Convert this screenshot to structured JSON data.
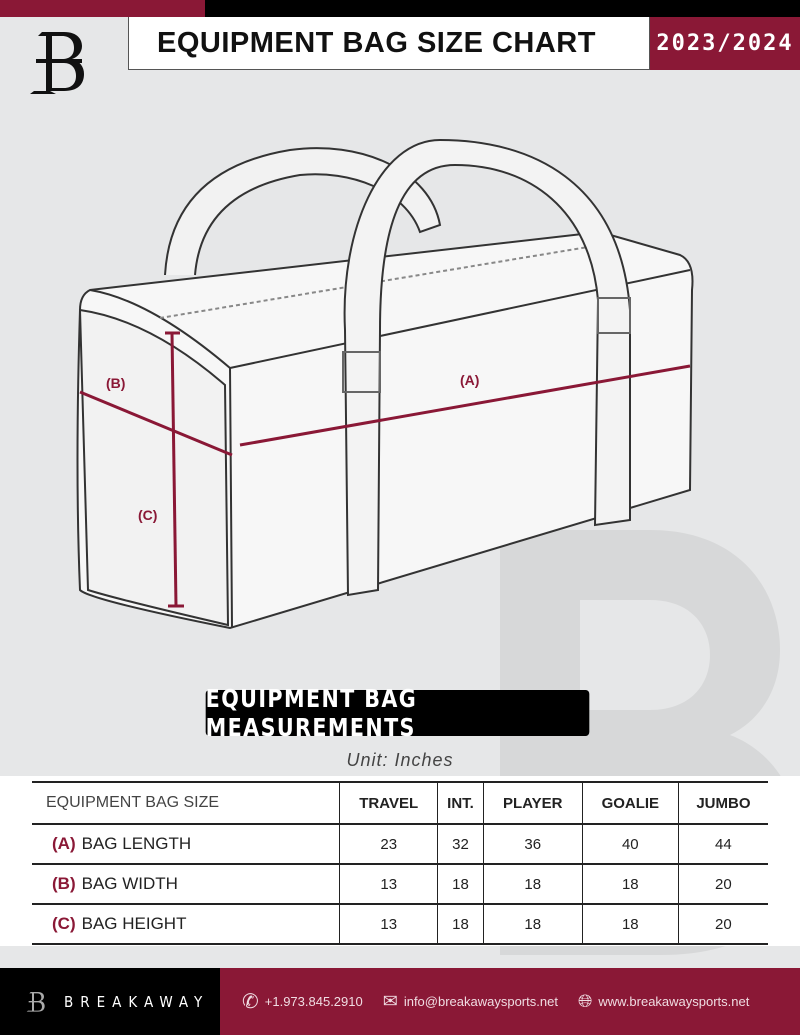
{
  "header": {
    "title": "EQUIPMENT BAG SIZE CHART",
    "season": "2023/2024"
  },
  "diagram": {
    "label_a": "(A)",
    "label_b": "(B)",
    "label_c": "(C)"
  },
  "measurements": {
    "banner": "EQUIPMENT BAG MEASUREMENTS",
    "unit": "Unit: Inches"
  },
  "table": {
    "corner": "EQUIPMENT BAG SIZE",
    "columns": [
      "TRAVEL",
      "INT.",
      "PLAYER",
      "GOALIE",
      "JUMBO"
    ],
    "rows": [
      {
        "letter": "(A)",
        "label": "BAG LENGTH",
        "values": [
          "23",
          "32",
          "36",
          "40",
          "44"
        ]
      },
      {
        "letter": "(B)",
        "label": "BAG WIDTH",
        "values": [
          "13",
          "18",
          "18",
          "18",
          "20"
        ]
      },
      {
        "letter": "(C)",
        "label": "BAG HEIGHT",
        "values": [
          "13",
          "18",
          "18",
          "18",
          "20"
        ]
      }
    ]
  },
  "footer": {
    "brand": "BREAKAWAY",
    "phone": "+1.973.845.2910",
    "email": "info@breakawaysports.net",
    "website": "www.breakawaysports.net"
  },
  "colors": {
    "accent": "#8a1836",
    "background": "#e6e7e8"
  }
}
